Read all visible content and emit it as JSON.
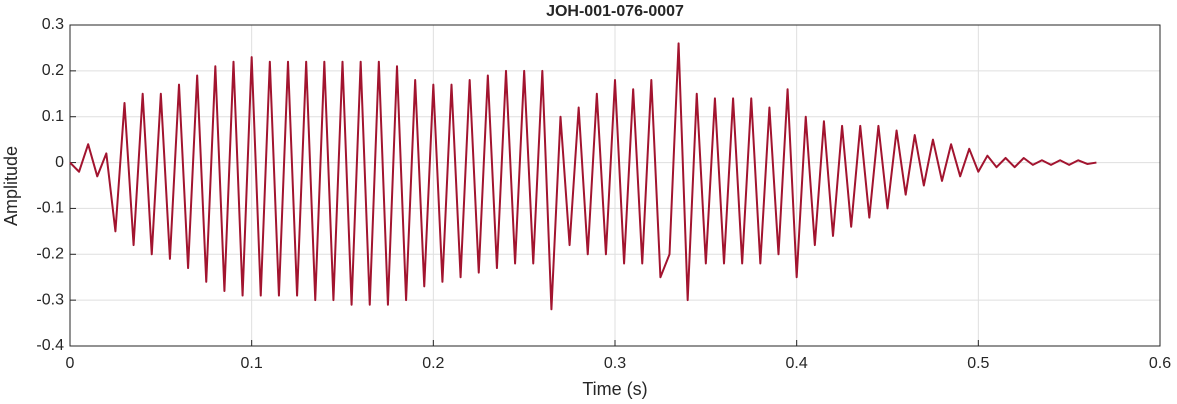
{
  "chart_data": {
    "type": "line",
    "title": "JOH-001-076-0007",
    "xlabel": "Time (s)",
    "ylabel": "Amplitude",
    "x": [
      0,
      0.005,
      0.01,
      0.015,
      0.02,
      0.025,
      0.03,
      0.035,
      0.04,
      0.045,
      0.05,
      0.055,
      0.06,
      0.065,
      0.07,
      0.075,
      0.08,
      0.085,
      0.09,
      0.095,
      0.1,
      0.105,
      0.11,
      0.115,
      0.12,
      0.125,
      0.13,
      0.135,
      0.14,
      0.145,
      0.15,
      0.155,
      0.16,
      0.165,
      0.17,
      0.175,
      0.18,
      0.185,
      0.19,
      0.195,
      0.2,
      0.205,
      0.21,
      0.215,
      0.22,
      0.225,
      0.23,
      0.235,
      0.24,
      0.245,
      0.25,
      0.255,
      0.26,
      0.265,
      0.27,
      0.275,
      0.28,
      0.285,
      0.29,
      0.295,
      0.3,
      0.305,
      0.31,
      0.315,
      0.32,
      0.325,
      0.33,
      0.335,
      0.34,
      0.345,
      0.35,
      0.355,
      0.36,
      0.365,
      0.37,
      0.375,
      0.38,
      0.385,
      0.39,
      0.395,
      0.4,
      0.405,
      0.41,
      0.415,
      0.42,
      0.425,
      0.43,
      0.435,
      0.44,
      0.445,
      0.45,
      0.455,
      0.46,
      0.465,
      0.47,
      0.475,
      0.48,
      0.485,
      0.49,
      0.495,
      0.5,
      0.505,
      0.51,
      0.515,
      0.52,
      0.525,
      0.53,
      0.535,
      0.54,
      0.545,
      0.55,
      0.555,
      0.56,
      0.565
    ],
    "series": [
      {
        "color": "#a2142f",
        "values": [
          0,
          -0.02,
          0.04,
          -0.03,
          0.02,
          -0.15,
          0.13,
          -0.18,
          0.15,
          -0.2,
          0.15,
          -0.21,
          0.17,
          -0.23,
          0.19,
          -0.26,
          0.21,
          -0.28,
          0.22,
          -0.29,
          0.23,
          -0.29,
          0.22,
          -0.29,
          0.22,
          -0.29,
          0.22,
          -0.3,
          0.22,
          -0.3,
          0.22,
          -0.31,
          0.22,
          -0.31,
          0.22,
          -0.31,
          0.21,
          -0.3,
          0.18,
          -0.27,
          0.17,
          -0.26,
          0.17,
          -0.25,
          0.18,
          -0.24,
          0.19,
          -0.23,
          0.2,
          -0.22,
          0.2,
          -0.22,
          0.2,
          -0.32,
          0.1,
          -0.18,
          0.12,
          -0.2,
          0.15,
          -0.2,
          0.18,
          -0.22,
          0.16,
          -0.22,
          0.18,
          -0.25,
          -0.2,
          0.26,
          -0.3,
          0.15,
          -0.22,
          0.14,
          -0.22,
          0.14,
          -0.22,
          0.14,
          -0.22,
          0.12,
          -0.2,
          0.16,
          -0.25,
          0.1,
          -0.18,
          0.09,
          -0.16,
          0.08,
          -0.14,
          0.08,
          -0.12,
          0.08,
          -0.1,
          0.07,
          -0.07,
          0.06,
          -0.05,
          0.05,
          -0.04,
          0.04,
          -0.03,
          0.03,
          -0.02,
          0.015,
          -0.01,
          0.01,
          -0.01,
          0.01,
          -0.005,
          0.005,
          -0.005,
          0.005,
          -0.005,
          0.005,
          -0.003,
          0
        ]
      }
    ],
    "xlim": [
      0,
      0.6
    ],
    "ylim": [
      -0.4,
      0.3
    ],
    "xticks": [
      0,
      0.1,
      0.2,
      0.3,
      0.4,
      0.5,
      0.6
    ],
    "yticks": [
      -0.4,
      -0.3,
      -0.2,
      -0.1,
      0,
      0.1,
      0.2,
      0.3
    ],
    "grid": true
  }
}
